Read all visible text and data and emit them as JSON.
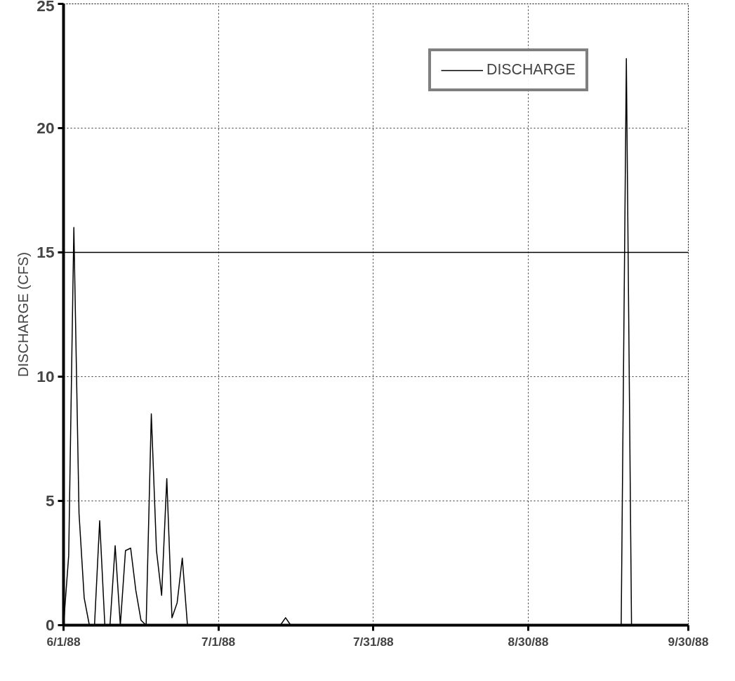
{
  "chart_data": {
    "type": "line",
    "ylabel": "DISCHARGE (CFS)",
    "x": [
      "1988-06-01",
      "1988-06-02",
      "1988-06-03",
      "1988-06-04",
      "1988-06-05",
      "1988-06-06",
      "1988-06-07",
      "1988-06-08",
      "1988-06-09",
      "1988-06-10",
      "1988-06-11",
      "1988-06-12",
      "1988-06-13",
      "1988-06-14",
      "1988-06-15",
      "1988-06-16",
      "1988-06-17",
      "1988-06-18",
      "1988-06-19",
      "1988-06-20",
      "1988-06-21",
      "1988-06-22",
      "1988-06-23",
      "1988-06-24",
      "1988-06-25",
      "1988-07-13",
      "1988-07-14",
      "1988-07-15",
      "1988-09-17",
      "1988-09-18",
      "1988-09-19",
      "1988-09-30"
    ],
    "series": [
      {
        "name": "DISCHARGE",
        "color": "#000000",
        "values": [
          0,
          2.8,
          16,
          4.5,
          1.1,
          0,
          0,
          4.2,
          0,
          0,
          3.2,
          0,
          3.0,
          3.1,
          1.4,
          0.2,
          0,
          8.5,
          3.0,
          1.2,
          5.9,
          0.3,
          0.9,
          2.7,
          0,
          0,
          0.3,
          0,
          0,
          22.8,
          0,
          0
        ]
      }
    ],
    "xlim": [
      "1988-06-01",
      "1988-09-30"
    ],
    "xticks": [
      {
        "value": "1988-06-01",
        "label": "6/1/88"
      },
      {
        "value": "1988-07-01",
        "label": "7/1/88"
      },
      {
        "value": "1988-07-31",
        "label": "7/31/88"
      },
      {
        "value": "1988-08-30",
        "label": "8/30/88"
      },
      {
        "value": "1988-09-30",
        "label": "9/30/88"
      }
    ],
    "ylim": [
      0,
      25
    ],
    "yticks": [
      0,
      5,
      10,
      15,
      20,
      25
    ],
    "ref_lines": [
      {
        "axis": "y",
        "value": 15,
        "label": null
      }
    ],
    "grid": true,
    "legend": "top right",
    "line_style": "solid"
  }
}
